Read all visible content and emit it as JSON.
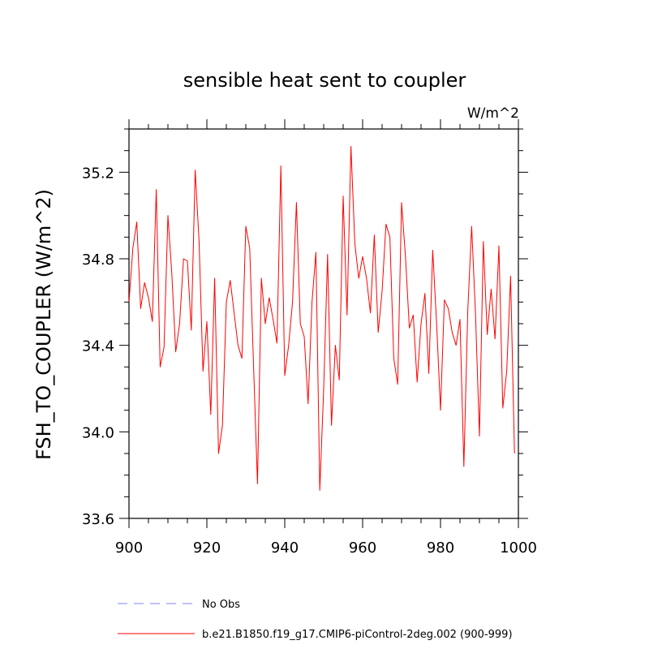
{
  "chart_data": {
    "type": "line",
    "title": "sensible heat sent to coupler",
    "units_label": "W/m^2",
    "ylabel": "FSH_TO_COUPLER  (W/m^2)",
    "xlabel": "",
    "xlim": [
      900,
      1000
    ],
    "ylim": [
      33.6,
      35.4
    ],
    "xticks": [
      900,
      920,
      940,
      960,
      980,
      1000
    ],
    "xtick_labels": [
      "900",
      "920",
      "940",
      "960",
      "980",
      "1000"
    ],
    "yticks": [
      33.6,
      34.0,
      34.4,
      34.8,
      35.2
    ],
    "ytick_labels": [
      "33.6",
      "34.0",
      "34.4",
      "34.8",
      "35.2"
    ],
    "grid": false,
    "series": [
      {
        "name": "b.e21.B1850.f19_g17.CMIP6-piControl-2deg.002 (900-999)",
        "color": "#ff0000",
        "x_start": 900,
        "values": [
          34.6,
          34.85,
          34.97,
          34.57,
          34.69,
          34.62,
          34.51,
          35.12,
          34.3,
          34.39,
          35.0,
          34.73,
          34.37,
          34.5,
          34.8,
          34.79,
          34.47,
          35.21,
          34.88,
          34.28,
          34.51,
          34.08,
          34.71,
          33.9,
          34.03,
          34.6,
          34.7,
          34.55,
          34.4,
          34.34,
          34.95,
          34.85,
          34.3,
          33.76,
          34.71,
          34.5,
          34.62,
          34.52,
          34.41,
          35.23,
          34.26,
          34.4,
          34.6,
          35.06,
          34.5,
          34.44,
          34.13,
          34.6,
          34.83,
          33.73,
          34.2,
          34.82,
          34.03,
          34.4,
          34.24,
          35.09,
          34.54,
          35.32,
          34.87,
          34.71,
          34.81,
          34.71,
          34.55,
          34.91,
          34.46,
          34.65,
          34.96,
          34.9,
          34.34,
          34.22,
          35.06,
          34.81,
          34.48,
          34.54,
          34.23,
          34.5,
          34.64,
          34.27,
          34.84,
          34.5,
          34.1,
          34.61,
          34.57,
          34.46,
          34.4,
          34.52,
          33.84,
          34.56,
          34.95,
          34.54,
          33.98,
          34.88,
          34.45,
          34.66,
          34.43,
          34.86,
          34.11,
          34.28,
          34.72,
          33.9
        ]
      },
      {
        "name": "No Obs",
        "color": "#8080ff",
        "values": []
      }
    ],
    "legend_position": "bottom-left"
  }
}
